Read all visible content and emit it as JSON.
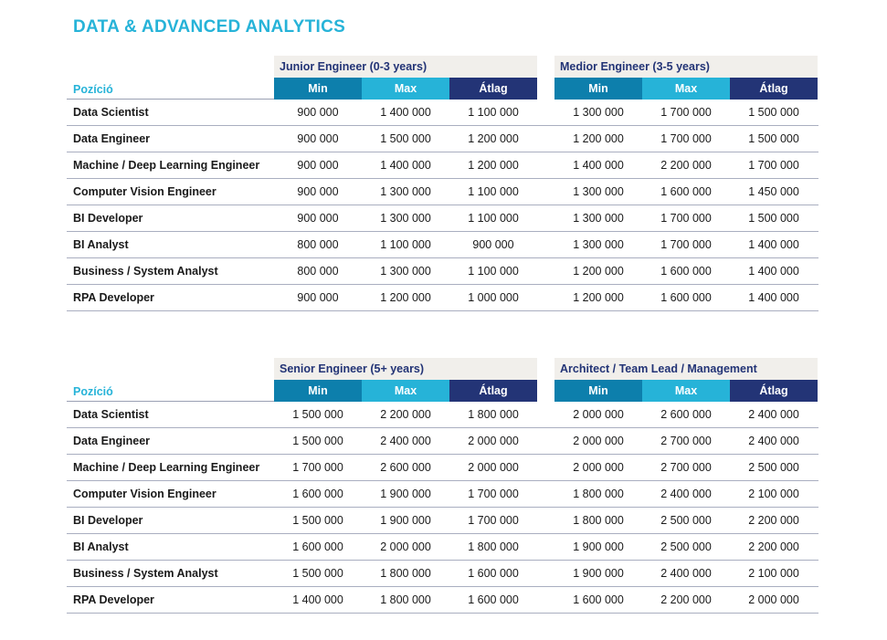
{
  "title": "DATA & ADVANCED ANALYTICS",
  "column_labels": {
    "position": "Pozíció",
    "min": "Min",
    "max": "Max",
    "avg": "Átlag"
  },
  "tables": [
    {
      "groups": [
        "Junior Engineer (0-3 years)",
        "Medior Engineer (3-5 years)"
      ],
      "rows": [
        {
          "name": "Data Scientist",
          "values": [
            "900 000",
            "1 400 000",
            "1 100 000",
            "1 300 000",
            "1 700 000",
            "1 500 000"
          ]
        },
        {
          "name": "Data Engineer",
          "values": [
            "900 000",
            "1 500 000",
            "1 200 000",
            "1 200 000",
            "1 700 000",
            "1 500 000"
          ]
        },
        {
          "name": "Machine / Deep Learning Engineer",
          "values": [
            "900 000",
            "1 400 000",
            "1 200 000",
            "1 400 000",
            "2 200 000",
            "1 700 000"
          ]
        },
        {
          "name": "Computer Vision Engineer",
          "values": [
            "900 000",
            "1 300 000",
            "1 100 000",
            "1 300 000",
            "1 600 000",
            "1 450 000"
          ]
        },
        {
          "name": "BI Developer",
          "values": [
            "900 000",
            "1 300 000",
            "1 100 000",
            "1 300 000",
            "1 700 000",
            "1 500 000"
          ]
        },
        {
          "name": "BI Analyst",
          "values": [
            "800 000",
            "1 100 000",
            "900 000",
            "1 300 000",
            "1 700 000",
            "1 400 000"
          ]
        },
        {
          "name": "Business / System Analyst",
          "values": [
            "800 000",
            "1 300 000",
            "1 100 000",
            "1 200 000",
            "1 600 000",
            "1 400 000"
          ]
        },
        {
          "name": "RPA Developer",
          "values": [
            "900 000",
            "1 200 000",
            "1 000 000",
            "1 200 000",
            "1 600 000",
            "1 400 000"
          ]
        }
      ]
    },
    {
      "groups": [
        "Senior Engineer (5+ years)",
        "Architect / Team Lead / Management"
      ],
      "rows": [
        {
          "name": "Data Scientist",
          "values": [
            "1 500 000",
            "2 200 000",
            "1 800 000",
            "2 000 000",
            "2 600 000",
            "2 400 000"
          ]
        },
        {
          "name": "Data Engineer",
          "values": [
            "1 500 000",
            "2 400 000",
            "2 000 000",
            "2 000 000",
            "2 700 000",
            "2 400 000"
          ]
        },
        {
          "name": "Machine / Deep Learning Engineer",
          "values": [
            "1 700 000",
            "2 600 000",
            "2 000 000",
            "2 000 000",
            "2 700 000",
            "2 500 000"
          ]
        },
        {
          "name": "Computer Vision Engineer",
          "values": [
            "1 600 000",
            "1 900 000",
            "1 700 000",
            "1 800 000",
            "2 400 000",
            "2 100 000"
          ]
        },
        {
          "name": "BI Developer",
          "values": [
            "1 500 000",
            "1 900 000",
            "1 700 000",
            "1 800 000",
            "2 500 000",
            "2 200 000"
          ]
        },
        {
          "name": "BI Analyst",
          "values": [
            "1 600 000",
            "2 000 000",
            "1 800 000",
            "1 900 000",
            "2 500 000",
            "2 200 000"
          ]
        },
        {
          "name": "Business / System Analyst",
          "values": [
            "1 500 000",
            "1 800 000",
            "1 600 000",
            "1 900 000",
            "2 400 000",
            "2 100 000"
          ]
        },
        {
          "name": "RPA Developer",
          "values": [
            "1 400 000",
            "1 800 000",
            "1 600 000",
            "1 600 000",
            "2 200 000",
            "2 000 000"
          ]
        }
      ]
    }
  ]
}
